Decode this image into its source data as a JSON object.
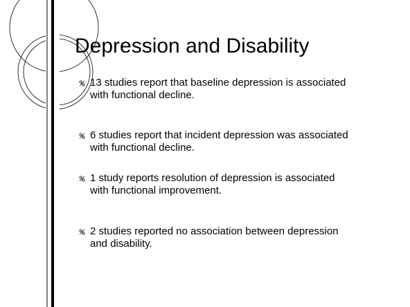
{
  "slide": {
    "title": "Depression and Disability",
    "bullets": [
      "13 studies report that baseline depression is associated with functional decline.",
      "6 studies report that incident depression was associated with functional decline.",
      "1 study reports resolution of depression is associated with functional improvement.",
      "2 studies reported no association between depression and disability."
    ]
  }
}
